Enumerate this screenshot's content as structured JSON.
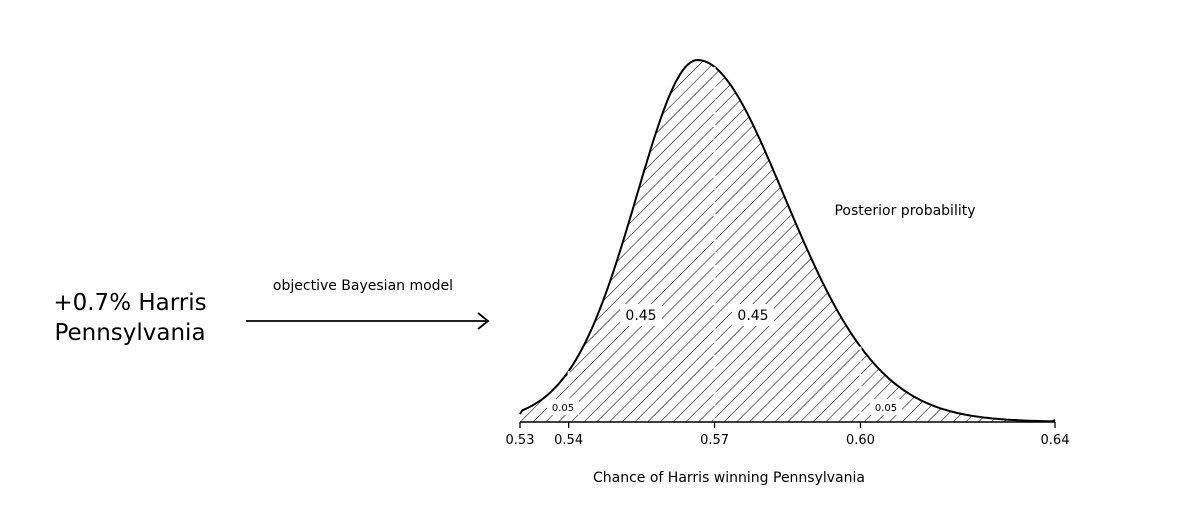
{
  "input": {
    "line1": "+0.7% Harris",
    "line2": "Pennsylvania"
  },
  "arrow": {
    "label": "objective Bayesian model"
  },
  "chart_data": {
    "type": "area",
    "title": "Posterior probability",
    "xlabel": "Chance of Harris winning Pennsylvania",
    "ylabel": "",
    "xlim": [
      0.53,
      0.64
    ],
    "x_ticks": [
      "0.53",
      "0.54",
      "0.57",
      "0.60",
      "0.64"
    ],
    "mode": 0.5665,
    "intervals": [
      {
        "from": 0.53,
        "to": 0.54,
        "mass": "0.05"
      },
      {
        "from": 0.54,
        "to": 0.57,
        "mass": "0.45"
      },
      {
        "from": 0.57,
        "to": 0.6,
        "mass": "0.45"
      },
      {
        "from": 0.6,
        "to": 0.64,
        "mass": "0.05"
      }
    ],
    "dividers": [
      0.54,
      0.57,
      0.6
    ],
    "fill": "diagonal hatch"
  }
}
